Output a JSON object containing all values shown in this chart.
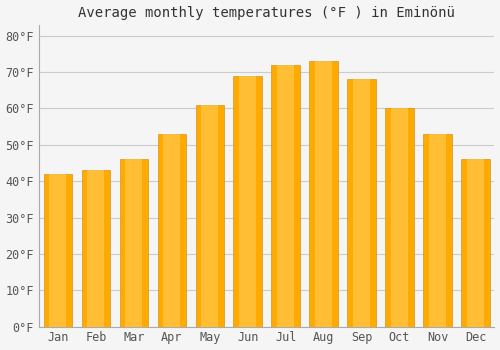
{
  "title": "Average monthly temperatures (°F ) in Eminönü",
  "months": [
    "Jan",
    "Feb",
    "Mar",
    "Apr",
    "May",
    "Jun",
    "Jul",
    "Aug",
    "Sep",
    "Oct",
    "Nov",
    "Dec"
  ],
  "temperatures": [
    42,
    43,
    46,
    53,
    61,
    69,
    72,
    73,
    68,
    60,
    53,
    46
  ],
  "bar_color_main": "#FFAA00",
  "bar_color_light": "#FFD060",
  "yticks": [
    0,
    10,
    20,
    30,
    40,
    50,
    60,
    70,
    80
  ],
  "ylim": [
    0,
    83
  ],
  "background_color": "#f5f5f5",
  "plot_bg_color": "#f5f5f5",
  "grid_color": "#cccccc",
  "title_fontsize": 10,
  "tick_fontsize": 8.5,
  "bar_edge_color": "#CC8800",
  "bar_width": 0.75
}
